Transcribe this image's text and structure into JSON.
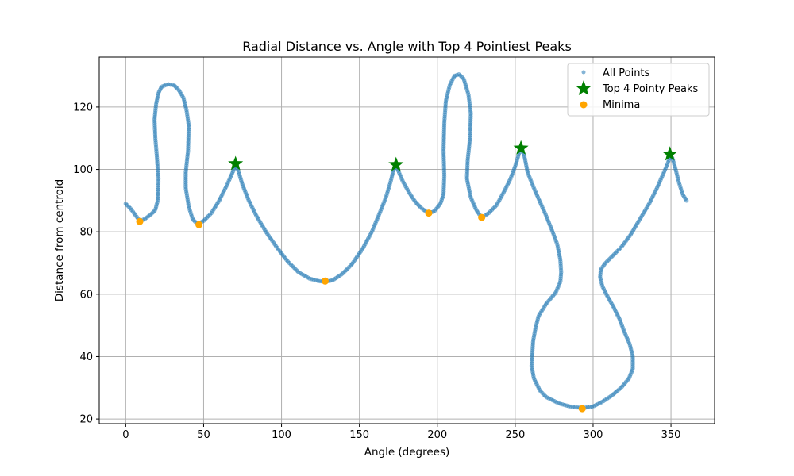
{
  "chart_data": {
    "type": "scatter",
    "title": "Radial Distance vs. Angle with Top 4 Pointiest Peaks",
    "xlabel": "Angle (degrees)",
    "ylabel": "Distance from centroid",
    "xlim": [
      -17,
      378
    ],
    "ylim": [
      18.5,
      136
    ],
    "xticks": [
      0,
      50,
      100,
      150,
      200,
      250,
      300,
      350
    ],
    "yticks": [
      20,
      40,
      60,
      80,
      100,
      120
    ],
    "grid": true,
    "legend_position": "upper-right",
    "colors": {
      "all_points": "#1f77b4",
      "peaks": "#008000",
      "minima": "#ffa500"
    },
    "series": [
      {
        "name": "All Points",
        "marker": "circle",
        "alpha": 0.5,
        "path": [
          [
            0,
            89
          ],
          [
            3,
            87.5
          ],
          [
            6,
            85.5
          ],
          [
            9,
            83.5
          ],
          [
            12,
            84
          ],
          [
            16,
            85.5
          ],
          [
            19,
            87
          ],
          [
            20.5,
            90
          ],
          [
            21,
            97
          ],
          [
            20,
            104
          ],
          [
            19,
            110
          ],
          [
            18.5,
            116
          ],
          [
            19.5,
            121
          ],
          [
            21,
            124.5
          ],
          [
            23,
            126.5
          ],
          [
            27,
            127.3
          ],
          [
            31,
            127
          ],
          [
            34,
            125.5
          ],
          [
            37,
            123
          ],
          [
            39,
            119
          ],
          [
            40.5,
            114
          ],
          [
            40,
            106
          ],
          [
            38.5,
            99
          ],
          [
            38.5,
            94
          ],
          [
            40.5,
            88
          ],
          [
            43,
            84
          ],
          [
            46,
            82.5
          ],
          [
            50,
            83.5
          ],
          [
            55,
            86
          ],
          [
            60,
            90
          ],
          [
            65,
            95
          ],
          [
            69,
            99.5
          ],
          [
            70.5,
            101.5
          ],
          [
            72,
            100
          ],
          [
            75,
            95
          ],
          [
            79,
            90
          ],
          [
            84,
            85
          ],
          [
            90,
            80
          ],
          [
            97,
            75
          ],
          [
            104,
            70.5
          ],
          [
            111,
            67
          ],
          [
            118,
            65
          ],
          [
            124,
            64.2
          ],
          [
            128,
            64
          ],
          [
            133,
            64.5
          ],
          [
            139,
            66.5
          ],
          [
            145,
            69.5
          ],
          [
            152,
            74.5
          ],
          [
            158,
            80
          ],
          [
            163,
            86
          ],
          [
            167,
            91
          ],
          [
            170,
            96
          ],
          [
            172,
            100
          ],
          [
            173.5,
            101.5
          ],
          [
            175,
            99.5
          ],
          [
            178,
            96
          ],
          [
            182,
            92.5
          ],
          [
            186,
            89.5
          ],
          [
            190,
            87.5
          ],
          [
            194,
            86
          ],
          [
            198,
            86.5
          ],
          [
            202,
            89
          ],
          [
            204,
            92
          ],
          [
            204.5,
            98
          ],
          [
            204,
            106
          ],
          [
            204.5,
            115
          ],
          [
            205.5,
            122
          ],
          [
            208,
            127
          ],
          [
            211,
            130
          ],
          [
            214,
            130.5
          ],
          [
            217,
            129
          ],
          [
            220,
            124
          ],
          [
            221.5,
            118
          ],
          [
            221,
            110
          ],
          [
            219.5,
            103
          ],
          [
            219,
            97
          ],
          [
            221.5,
            91
          ],
          [
            225,
            87
          ],
          [
            228.5,
            84.5
          ],
          [
            233,
            86
          ],
          [
            238,
            88.5
          ],
          [
            243,
            93
          ],
          [
            247,
            97
          ],
          [
            250,
            101
          ],
          [
            253,
            106
          ],
          [
            254,
            107
          ],
          [
            256,
            104
          ],
          [
            258,
            99
          ],
          [
            262,
            94
          ],
          [
            266,
            89.5
          ],
          [
            270,
            85
          ],
          [
            274,
            80
          ],
          [
            277,
            76
          ],
          [
            279,
            71
          ],
          [
            279.5,
            67
          ],
          [
            279,
            64
          ],
          [
            276,
            60.5
          ],
          [
            270,
            57
          ],
          [
            265,
            53
          ],
          [
            263,
            49
          ],
          [
            261.5,
            45
          ],
          [
            261,
            41
          ],
          [
            260.5,
            37
          ],
          [
            262,
            33
          ],
          [
            266,
            29
          ],
          [
            270,
            27
          ],
          [
            278,
            25
          ],
          [
            285,
            24
          ],
          [
            293,
            23.5
          ],
          [
            300,
            24
          ],
          [
            306,
            25.5
          ],
          [
            312,
            27.5
          ],
          [
            318,
            30
          ],
          [
            323,
            33
          ],
          [
            325.5,
            36
          ],
          [
            325.5,
            40
          ],
          [
            323.5,
            44
          ],
          [
            320,
            48
          ],
          [
            317,
            52
          ],
          [
            313,
            56
          ],
          [
            309,
            59.5
          ],
          [
            306,
            62.5
          ],
          [
            304.5,
            65.5
          ],
          [
            305,
            68
          ],
          [
            308,
            70
          ],
          [
            312,
            72
          ],
          [
            318,
            75
          ],
          [
            324,
            79
          ],
          [
            330,
            84
          ],
          [
            336,
            89
          ],
          [
            341,
            94
          ],
          [
            345,
            98.5
          ],
          [
            348,
            102
          ],
          [
            349.5,
            104.5
          ],
          [
            351,
            103.5
          ],
          [
            353,
            100
          ],
          [
            355,
            96
          ],
          [
            357.5,
            92
          ],
          [
            360,
            90
          ]
        ]
      },
      {
        "name": "Top 4 Pointy Peaks",
        "marker": "star",
        "points": [
          [
            70.5,
            101.8
          ],
          [
            173.5,
            101.5
          ],
          [
            253.7,
            106.8
          ],
          [
            349.3,
            104.9
          ]
        ]
      },
      {
        "name": "Minima",
        "marker": "circle",
        "points": [
          [
            9,
            83.3
          ],
          [
            47,
            82.3
          ],
          [
            128,
            64.2
          ],
          [
            194.5,
            86
          ],
          [
            228.5,
            84.6
          ],
          [
            293,
            23.3
          ]
        ]
      }
    ]
  }
}
